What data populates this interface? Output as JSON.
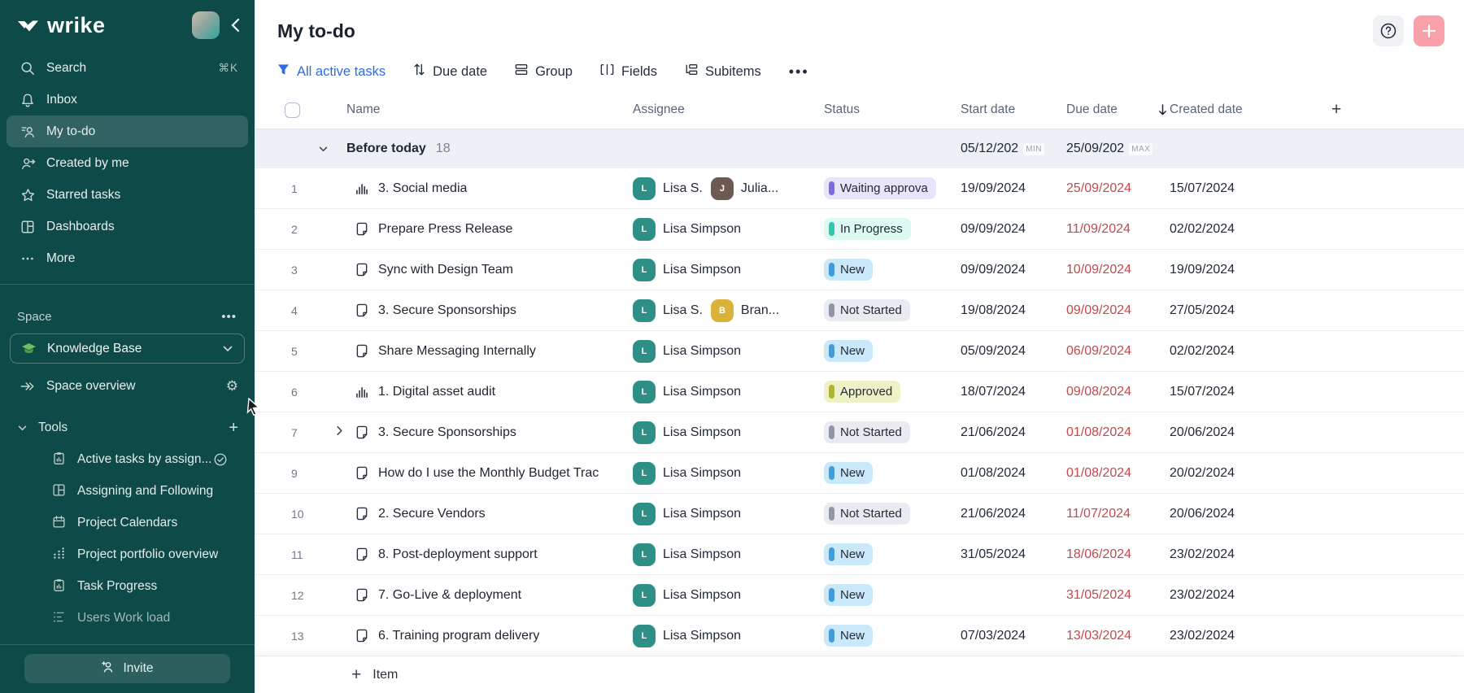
{
  "colors": {
    "sidebar_bg": "#0E4A47",
    "accent_blue": "#2E6BE5",
    "overdue_red": "#C4494B",
    "add_button_pink": "#F9A0A9",
    "group_row_bg": "#EDF0F5",
    "status": {
      "waiting": {
        "bg": "#E9E4FA",
        "bar": "#7E6BDC"
      },
      "inprogress": {
        "bg": "#DCF9F2",
        "bar": "#2FC7B2"
      },
      "new": {
        "bg": "#C9E9FB",
        "bar": "#3E9EDD"
      },
      "notstarted": {
        "bg": "#E9EBF0",
        "bar": "#8E96A8"
      },
      "approved": {
        "bg": "#EEF0C5",
        "bar": "#B1B42B"
      }
    },
    "avatars": {
      "lisa": "#2E8F86",
      "julia": "#6E5A52",
      "brandon": "#D9B13B"
    }
  },
  "sidebar": {
    "logo_text": "wrike",
    "nav": [
      {
        "label": "Search",
        "shortcut": "⌘K"
      },
      {
        "label": "Inbox"
      },
      {
        "label": "My to-do"
      },
      {
        "label": "Created by me"
      },
      {
        "label": "Starred tasks"
      },
      {
        "label": "Dashboards"
      },
      {
        "label": "More"
      }
    ],
    "space_label": "Space",
    "space_menu": "...",
    "space_name": "Knowledge Base",
    "space_overview_label": "Space overview",
    "tools_label": "Tools",
    "tools": [
      {
        "label": "Active tasks by assign...",
        "icon": "clipboard-chart",
        "checked": true
      },
      {
        "label": "Assigning and Following",
        "icon": "layout"
      },
      {
        "label": "Project Calendars",
        "icon": "calendar"
      },
      {
        "label": "Project portfolio overview",
        "icon": "dot-chart"
      },
      {
        "label": "Task Progress",
        "icon": "clipboard-chart"
      },
      {
        "label": "Users Work load",
        "icon": "workload",
        "dim": true
      }
    ],
    "invite_label": "Invite"
  },
  "header": {
    "title": "My to-do"
  },
  "toolbar": {
    "filter_label": "All active tasks",
    "sort_label": "Due date",
    "group_label": "Group",
    "fields_label": "Fields",
    "subitems_label": "Subitems",
    "more_label": "•••"
  },
  "table": {
    "columns": {
      "name": "Name",
      "assignee": "Assignee",
      "status": "Status",
      "start": "Start date",
      "due": "Due date",
      "created": "Created date"
    },
    "group": {
      "name": "Before today",
      "count": "18",
      "min_date": "05/12/202",
      "min_label": "MIN",
      "max_date": "25/09/202",
      "max_label": "MAX"
    },
    "add_item_label": "Item",
    "rows": [
      {
        "num": "1",
        "type": "chart",
        "name": "3. Social media",
        "assignees": [
          {
            "initial": "L",
            "label": "Lisa S.",
            "color": "lisa"
          },
          {
            "initial": "J",
            "label": "Julia...",
            "color": "julia"
          }
        ],
        "status": {
          "label": "Waiting approva",
          "kind": "waiting"
        },
        "start": "19/09/2024",
        "due": "25/09/2024",
        "created": "15/07/2024"
      },
      {
        "num": "2",
        "type": "task",
        "name": "Prepare Press Release",
        "assignees": [
          {
            "initial": "L",
            "label": "Lisa Simpson",
            "color": "lisa"
          }
        ],
        "status": {
          "label": "In Progress",
          "kind": "inprogress"
        },
        "start": "09/09/2024",
        "due": "11/09/2024",
        "created": "02/02/2024"
      },
      {
        "num": "3",
        "type": "task",
        "name": "Sync with Design Team",
        "assignees": [
          {
            "initial": "L",
            "label": "Lisa Simpson",
            "color": "lisa"
          }
        ],
        "status": {
          "label": "New",
          "kind": "new"
        },
        "start": "09/09/2024",
        "due": "10/09/2024",
        "created": "19/09/2024"
      },
      {
        "num": "4",
        "type": "task",
        "name": "3. Secure Sponsorships",
        "assignees": [
          {
            "initial": "L",
            "label": "Lisa S.",
            "color": "lisa"
          },
          {
            "initial": "B",
            "label": "Bran...",
            "color": "brandon"
          }
        ],
        "status": {
          "label": "Not Started",
          "kind": "notstarted"
        },
        "start": "19/08/2024",
        "due": "09/09/2024",
        "created": "27/05/2024"
      },
      {
        "num": "5",
        "type": "task",
        "name": "Share Messaging Internally",
        "assignees": [
          {
            "initial": "L",
            "label": "Lisa Simpson",
            "color": "lisa"
          }
        ],
        "status": {
          "label": "New",
          "kind": "new"
        },
        "start": "05/09/2024",
        "due": "06/09/2024",
        "created": "02/02/2024"
      },
      {
        "num": "6",
        "type": "chart",
        "name": "1. Digital asset audit",
        "assignees": [
          {
            "initial": "L",
            "label": "Lisa Simpson",
            "color": "lisa"
          }
        ],
        "status": {
          "label": "Approved",
          "kind": "approved"
        },
        "start": "18/07/2024",
        "due": "09/08/2024",
        "created": "15/07/2024"
      },
      {
        "num": "7",
        "type": "task",
        "expandable": true,
        "name": "3. Secure Sponsorships",
        "assignees": [
          {
            "initial": "L",
            "label": "Lisa Simpson",
            "color": "lisa"
          }
        ],
        "status": {
          "label": "Not Started",
          "kind": "notstarted"
        },
        "start": "21/06/2024",
        "due": "01/08/2024",
        "created": "20/06/2024"
      },
      {
        "num": "9",
        "type": "task",
        "name": "How do I use the Monthly Budget Trac",
        "assignees": [
          {
            "initial": "L",
            "label": "Lisa Simpson",
            "color": "lisa"
          }
        ],
        "status": {
          "label": "New",
          "kind": "new"
        },
        "start": "01/08/2024",
        "due": "01/08/2024",
        "created": "20/02/2024"
      },
      {
        "num": "10",
        "type": "task",
        "name": "2. Secure Vendors",
        "assignees": [
          {
            "initial": "L",
            "label": "Lisa Simpson",
            "color": "lisa"
          }
        ],
        "status": {
          "label": "Not Started",
          "kind": "notstarted"
        },
        "start": "21/06/2024",
        "due": "11/07/2024",
        "created": "20/06/2024"
      },
      {
        "num": "11",
        "type": "task",
        "name": "8. Post-deployment support",
        "assignees": [
          {
            "initial": "L",
            "label": "Lisa Simpson",
            "color": "lisa"
          }
        ],
        "status": {
          "label": "New",
          "kind": "new"
        },
        "start": "31/05/2024",
        "due": "18/06/2024",
        "created": "23/02/2024"
      },
      {
        "num": "12",
        "type": "task",
        "name": "7. Go-Live & deployment",
        "assignees": [
          {
            "initial": "L",
            "label": "Lisa Simpson",
            "color": "lisa"
          }
        ],
        "status": {
          "label": "New",
          "kind": "new"
        },
        "start": "",
        "due": "31/05/2024",
        "created": "23/02/2024"
      },
      {
        "num": "13",
        "type": "task",
        "name": "6. Training program delivery",
        "assignees": [
          {
            "initial": "L",
            "label": "Lisa Simpson",
            "color": "lisa"
          }
        ],
        "status": {
          "label": "New",
          "kind": "new"
        },
        "start": "07/03/2024",
        "due": "13/03/2024",
        "created": "23/02/2024"
      }
    ]
  }
}
